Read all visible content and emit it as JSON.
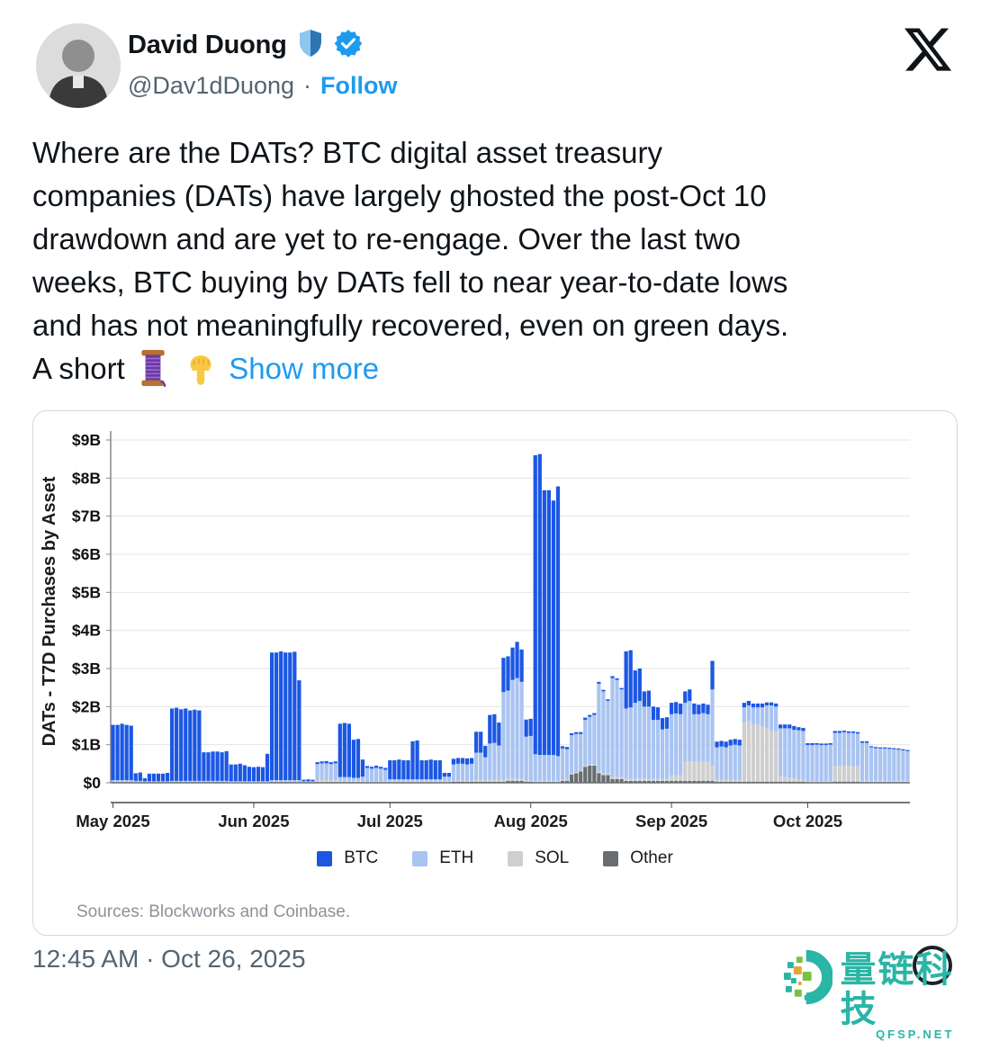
{
  "header": {
    "name": "David Duong",
    "handle": "@Dav1dDuong",
    "separator": "·",
    "follow_label": "Follow",
    "icons": [
      "shield-icon",
      "verified-badge-icon",
      "x-logo-icon"
    ]
  },
  "tweet": {
    "lines": [
      "Where are the DATs? BTC digital asset treasury",
      "companies (DATs) have largely ghosted the post-Oct 10",
      "drawdown and are yet to re-engage. Over the last two",
      "weeks, BTC buying by DATs fell to near year-to-date lows",
      "and has not meaningfully recovered, even on green days."
    ],
    "last_line_prefix": "A short",
    "emojis": [
      "thread-spool-emoji",
      "pointing-down-emoji"
    ],
    "show_more_label": "Show more"
  },
  "chart": {
    "ylabel": "DATs - T7D Purchases by Asset",
    "yticks": [
      "$0",
      "$1B",
      "$2B",
      "$3B",
      "$4B",
      "$5B",
      "$6B",
      "$7B",
      "$8B",
      "$9B"
    ],
    "legend": [
      {
        "label": "BTC",
        "color": "#1c57e4"
      },
      {
        "label": "ETH",
        "color": "#a9c4f1"
      },
      {
        "label": "SOL",
        "color": "#cfcfcf"
      },
      {
        "label": "Other",
        "color": "#686d71"
      }
    ],
    "source": "Sources: Blockworks and Coinbase."
  },
  "chart_data": {
    "type": "bar",
    "stacked": true,
    "unit": "USD billions",
    "start_date": "2025-05-01",
    "frequency": "daily",
    "ylabel": "DATs - T7D Purchases by Asset",
    "ylim": [
      0,
      9
    ],
    "grid": true,
    "legend_position": "bottom",
    "month_ticks": [
      {
        "label": "May 2025",
        "index": 0
      },
      {
        "label": "Jun 2025",
        "index": 31
      },
      {
        "label": "Jul 2025",
        "index": 61
      },
      {
        "label": "Aug 2025",
        "index": 92
      },
      {
        "label": "Sep 2025",
        "index": 123
      },
      {
        "label": "Oct 2025",
        "index": 153
      }
    ],
    "stack_bottom_to_top": [
      "Other",
      "SOL",
      "ETH",
      "BTC"
    ],
    "series": [
      {
        "name": "BTC",
        "color": "#1c57e4",
        "values": [
          1.45,
          1.45,
          1.48,
          1.45,
          1.43,
          0.2,
          0.22,
          0.08,
          0.2,
          0.2,
          0.2,
          0.2,
          0.22,
          1.9,
          1.92,
          1.88,
          1.9,
          1.85,
          1.87,
          1.85,
          0.75,
          0.75,
          0.77,
          0.77,
          0.75,
          0.78,
          0.44,
          0.44,
          0.46,
          0.42,
          0.38,
          0.37,
          0.38,
          0.37,
          0.72,
          3.35,
          3.35,
          3.38,
          3.35,
          3.35,
          3.37,
          2.62,
          0.04,
          0.05,
          0.04,
          0.05,
          0.05,
          0.06,
          0.05,
          0.05,
          1.4,
          1.42,
          1.4,
          1.0,
          1.02,
          0.45,
          0.05,
          0.05,
          0.06,
          0.05,
          0.05,
          0.5,
          0.5,
          0.52,
          0.5,
          0.5,
          1.0,
          1.02,
          0.5,
          0.5,
          0.52,
          0.5,
          0.5,
          0.1,
          0.1,
          0.15,
          0.15,
          0.15,
          0.16,
          0.15,
          0.55,
          0.55,
          0.3,
          0.75,
          0.75,
          0.6,
          0.9,
          0.9,
          0.85,
          0.95,
          0.85,
          0.45,
          0.45,
          7.85,
          7.9,
          6.95,
          6.95,
          6.68,
          7.08,
          0.06,
          0.06,
          0.05,
          0.05,
          0.05,
          0.06,
          0.05,
          0.05,
          0.05,
          0.04,
          0.04,
          0.05,
          0.04,
          0.04,
          1.5,
          1.5,
          0.85,
          0.85,
          0.4,
          0.42,
          0.35,
          0.33,
          0.3,
          0.3,
          0.3,
          0.3,
          0.28,
          0.3,
          0.3,
          0.28,
          0.25,
          0.25,
          0.25,
          0.75,
          0.15,
          0.15,
          0.15,
          0.15,
          0.15,
          0.15,
          0.12,
          0.12,
          0.1,
          0.1,
          0.1,
          0.08,
          0.08,
          0.08,
          0.1,
          0.1,
          0.1,
          0.1,
          0.08,
          0.08,
          0.05,
          0.05,
          0.04,
          0.04,
          0.04,
          0.04,
          0.05,
          0.05,
          0.04,
          0.04,
          0.04,
          0.04,
          0.04,
          0.04,
          0.03,
          0.03,
          0.03,
          0.03,
          0.03,
          0.03,
          0.03,
          0.03,
          0.03
        ]
      },
      {
        "name": "ETH",
        "color": "#a9c4f1",
        "values": [
          0.05,
          0.05,
          0.05,
          0.05,
          0.05,
          0.03,
          0.03,
          0.02,
          0.02,
          0.02,
          0.02,
          0.02,
          0.02,
          0.03,
          0.03,
          0.03,
          0.03,
          0.03,
          0.03,
          0.03,
          0.03,
          0.03,
          0.03,
          0.03,
          0.03,
          0.03,
          0.03,
          0.03,
          0.03,
          0.03,
          0.03,
          0.03,
          0.03,
          0.03,
          0.03,
          0.05,
          0.05,
          0.05,
          0.05,
          0.05,
          0.05,
          0.05,
          0.02,
          0.02,
          0.02,
          0.42,
          0.44,
          0.44,
          0.42,
          0.44,
          0.1,
          0.1,
          0.1,
          0.08,
          0.08,
          0.12,
          0.35,
          0.33,
          0.35,
          0.33,
          0.3,
          0.05,
          0.05,
          0.05,
          0.05,
          0.05,
          0.05,
          0.05,
          0.05,
          0.05,
          0.05,
          0.05,
          0.05,
          0.12,
          0.12,
          0.42,
          0.44,
          0.44,
          0.42,
          0.44,
          0.72,
          0.72,
          0.6,
          0.95,
          0.97,
          0.9,
          2.3,
          2.32,
          2.6,
          2.65,
          2.55,
          1.15,
          1.17,
          0.7,
          0.68,
          0.68,
          0.68,
          0.68,
          0.65,
          0.82,
          0.8,
          1.0,
          1.0,
          0.95,
          1.2,
          1.25,
          1.3,
          2.3,
          2.15,
          1.9,
          2.6,
          2.55,
          2.3,
          1.85,
          1.88,
          2.0,
          2.05,
          1.9,
          1.9,
          1.55,
          1.55,
          1.3,
          1.32,
          1.6,
          1.62,
          1.6,
          1.55,
          1.6,
          1.25,
          1.25,
          1.28,
          1.25,
          2.0,
          0.85,
          0.87,
          0.85,
          0.9,
          0.92,
          0.9,
          0.4,
          0.42,
          0.45,
          0.45,
          0.5,
          0.6,
          0.65,
          0.65,
          1.25,
          1.28,
          1.3,
          1.28,
          1.3,
          1.28,
          0.95,
          0.95,
          0.96,
          0.95,
          0.95,
          0.96,
          0.88,
          0.86,
          0.88,
          0.86,
          0.88,
          0.86,
          1.0,
          1.0,
          0.88,
          0.86,
          0.85,
          0.85,
          0.84,
          0.83,
          0.82,
          0.8,
          0.78
        ]
      },
      {
        "name": "SOL",
        "color": "#cfcfcf",
        "values": [
          0,
          0,
          0,
          0,
          0,
          0,
          0,
          0,
          0,
          0,
          0,
          0,
          0,
          0,
          0,
          0,
          0,
          0,
          0,
          0,
          0,
          0,
          0,
          0,
          0,
          0,
          0,
          0,
          0,
          0,
          0,
          0,
          0,
          0,
          0,
          0,
          0,
          0,
          0,
          0,
          0,
          0,
          0,
          0,
          0,
          0.05,
          0.05,
          0.05,
          0.05,
          0.05,
          0.03,
          0.03,
          0.03,
          0.03,
          0.03,
          0.02,
          0.02,
          0.02,
          0.02,
          0.02,
          0.02,
          0.02,
          0.02,
          0.02,
          0.02,
          0.02,
          0.02,
          0.02,
          0.02,
          0.02,
          0.02,
          0.02,
          0.02,
          0.02,
          0.02,
          0.03,
          0.03,
          0.03,
          0.03,
          0.03,
          0.04,
          0.04,
          0.04,
          0.05,
          0.05,
          0.05,
          0.05,
          0.05,
          0.05,
          0.05,
          0.05,
          0.03,
          0.03,
          0.03,
          0.03,
          0.03,
          0.03,
          0.03,
          0.03,
          0.03,
          0.03,
          0.03,
          0.03,
          0.03,
          0.03,
          0.03,
          0.03,
          0.05,
          0.05,
          0.05,
          0.05,
          0.05,
          0.05,
          0.05,
          0.05,
          0.05,
          0.05,
          0.05,
          0.05,
          0.05,
          0.05,
          0.05,
          0.05,
          0.15,
          0.15,
          0.15,
          0.5,
          0.5,
          0.5,
          0.5,
          0.5,
          0.5,
          0.4,
          0.05,
          0.05,
          0.05,
          0.05,
          0.05,
          0.05,
          1.55,
          1.58,
          1.5,
          1.5,
          1.45,
          1.4,
          1.35,
          1.32,
          0.15,
          0.12,
          0.1,
          0.08,
          0.05,
          0.05,
          0.02,
          0.02,
          0.02,
          0.02,
          0.02,
          0.02,
          0.4,
          0.42,
          0.42,
          0.42,
          0.4,
          0.4,
          0.03,
          0.03,
          0.03,
          0.03,
          0.03,
          0.03,
          0.03,
          0.03,
          0.03,
          0.03,
          0.03
        ]
      },
      {
        "name": "Other",
        "color": "#686d71",
        "values": [
          0.02,
          0.02,
          0.02,
          0.02,
          0.02,
          0.02,
          0.02,
          0.02,
          0.02,
          0.02,
          0.02,
          0.02,
          0.02,
          0.02,
          0.02,
          0.02,
          0.02,
          0.02,
          0.02,
          0.02,
          0.02,
          0.02,
          0.02,
          0.02,
          0.02,
          0.02,
          0.01,
          0.01,
          0.01,
          0.01,
          0.01,
          0.01,
          0.01,
          0.01,
          0.01,
          0.02,
          0.02,
          0.02,
          0.02,
          0.02,
          0.02,
          0.02,
          0.02,
          0.02,
          0.02,
          0.02,
          0.02,
          0.02,
          0.02,
          0.02,
          0.02,
          0.02,
          0.02,
          0.02,
          0.02,
          0.02,
          0.02,
          0.02,
          0.02,
          0.02,
          0.02,
          0.02,
          0.02,
          0.02,
          0.02,
          0.02,
          0.02,
          0.02,
          0.02,
          0.02,
          0.02,
          0.02,
          0.02,
          0.02,
          0.02,
          0.03,
          0.03,
          0.03,
          0.03,
          0.03,
          0.03,
          0.03,
          0.03,
          0.03,
          0.03,
          0.03,
          0.03,
          0.05,
          0.05,
          0.05,
          0.05,
          0.03,
          0.03,
          0.02,
          0.02,
          0.02,
          0.02,
          0.02,
          0.02,
          0.05,
          0.05,
          0.22,
          0.25,
          0.3,
          0.42,
          0.45,
          0.45,
          0.25,
          0.2,
          0.2,
          0.1,
          0.1,
          0.1,
          0.05,
          0.05,
          0.05,
          0.05,
          0.05,
          0.05,
          0.05,
          0.05,
          0.05,
          0.05,
          0.05,
          0.05,
          0.05,
          0.05,
          0.05,
          0.05,
          0.05,
          0.05,
          0.05,
          0.05,
          0.03,
          0.03,
          0.03,
          0.03,
          0.03,
          0.03,
          0.03,
          0.03,
          0.03,
          0.03,
          0.03,
          0.03,
          0.03,
          0.03,
          0.03,
          0.03,
          0.03,
          0.03,
          0.03,
          0.03,
          0.02,
          0.02,
          0.02,
          0.02,
          0.02,
          0.02,
          0.03,
          0.03,
          0.03,
          0.03,
          0.03,
          0.03,
          0.02,
          0.02,
          0.02,
          0.02,
          0.02,
          0.02,
          0.02,
          0.02,
          0.02,
          0.02,
          0.02
        ]
      }
    ]
  },
  "footer": {
    "timestamp": "12:45 AM · Oct 26, 2025"
  },
  "watermark": {
    "brand": "量链科技",
    "domain": "QFSP.NET",
    "color": "#2ab5a5"
  }
}
